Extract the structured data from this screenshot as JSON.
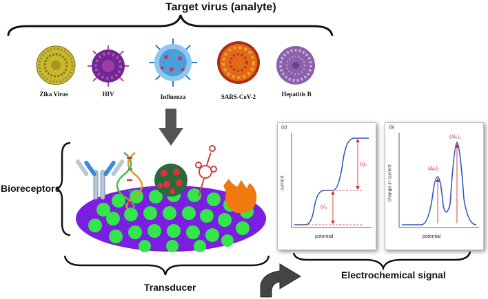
{
  "header": {
    "title": "Target virus (analyte)"
  },
  "viruses": [
    {
      "label": "Zika Virus",
      "color": "#c8b830"
    },
    {
      "label": "HIV",
      "color": "#8a3aa8"
    },
    {
      "label": "Influenza",
      "color": "#3b8fd0"
    },
    {
      "label": "SARS-CoV-2",
      "color": "#e06a1a"
    },
    {
      "label": "Hepatitis B",
      "color": "#9a70b8"
    }
  ],
  "bioreceptors": {
    "label": "Bioreceptors"
  },
  "transducer": {
    "label": "Transducer"
  },
  "signal": {
    "label": "Electrochemical signal"
  },
  "graph_a": {
    "tag": "(a)",
    "ylabel": "current",
    "xlabel": "potential",
    "ann_top": "(iₗ)₂",
    "ann_bottom": "(iₗ)₁"
  },
  "graph_b": {
    "tag": "(b)",
    "ylabel": "change in current",
    "xlabel": "potential",
    "ann_left": "(Δiₚ)₁",
    "ann_right": "(Δiₚ)₂"
  },
  "colors": {
    "ellipse": "#7a1fe0",
    "dots": "#33e64a",
    "curve": "#2f55c8",
    "ann": "#d92a2a",
    "arrow": "#555555"
  }
}
